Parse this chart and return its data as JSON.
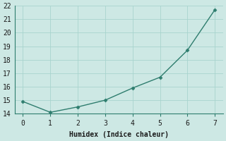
{
  "x": [
    0,
    1,
    2,
    3,
    4,
    5,
    6,
    7
  ],
  "y": [
    14.9,
    14.1,
    14.5,
    15.0,
    15.9,
    16.7,
    18.7,
    21.7
  ],
  "xlabel": "Humidex (Indice chaleur)",
  "ylim": [
    14,
    22
  ],
  "xlim": [
    -0.3,
    7.3
  ],
  "yticks": [
    14,
    15,
    16,
    17,
    18,
    19,
    20,
    21,
    22
  ],
  "xticks": [
    0,
    1,
    2,
    3,
    4,
    5,
    6,
    7
  ],
  "line_color": "#2e7d6e",
  "marker": "D",
  "marker_size": 2.5,
  "bg_color": "#cde8e4",
  "grid_color": "#a8d4ce",
  "axis_color": "#2e7d6e",
  "xlabel_fontsize": 7,
  "tick_fontsize": 7
}
